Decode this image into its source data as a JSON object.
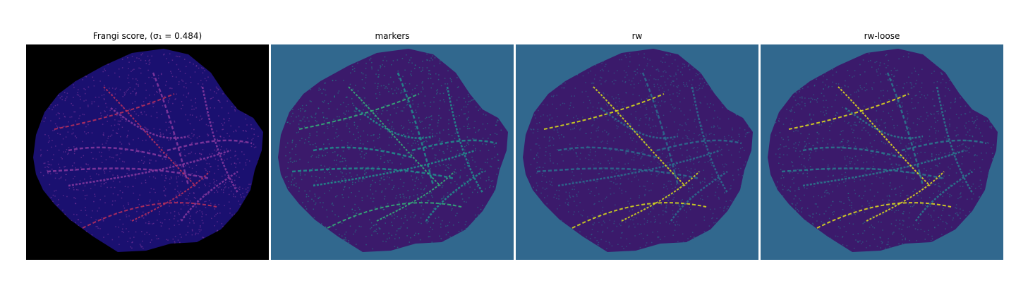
{
  "figure": {
    "panels": [
      {
        "id": "frangi",
        "title": "Frangi score, (σ₁ = 0.484)",
        "background": "#000000",
        "blob": "#1a1070",
        "vessel": "#8a3aa0",
        "highlight": "#c0305a"
      },
      {
        "id": "markers",
        "title": "markers",
        "background": "#31688e",
        "blob": "#3b1a6b",
        "vessel": "#21908d",
        "highlight": "#35b779"
      },
      {
        "id": "rw",
        "title": "rw",
        "background": "#31688e",
        "blob": "#3b1a6b",
        "vessel": "#2c6f8e",
        "highlight": "#dde318"
      },
      {
        "id": "rw-loose",
        "title": "rw-loose",
        "background": "#31688e",
        "blob": "#3b1a6b",
        "vessel": "#2a7b8e",
        "highlight": "#e8e41a"
      }
    ]
  }
}
